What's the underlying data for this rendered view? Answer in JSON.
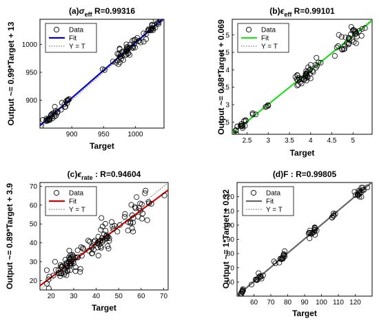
{
  "chart_data": [
    {
      "type": "scatter",
      "title_prefix": "(a)",
      "title_sym": "σ",
      "title_sub": "eff",
      "title_r": "  R=0.99316",
      "xlabel": "Target",
      "ylabel": "Output ~= 0.99*Target + 13",
      "xlim": [
        850,
        1045
      ],
      "ylim": [
        850,
        1045
      ],
      "xticks": [
        900,
        950,
        1000
      ],
      "yticks": [
        900,
        950,
        1000
      ],
      "fit": {
        "slope": 0.99,
        "intercept": 13
      },
      "fit_color": "#0000cc",
      "legend": {
        "data": "Data",
        "fit": "Fit",
        "ident": "Y = T"
      },
      "groups": [
        {
          "xc": 868,
          "xs": 12,
          "n": 26,
          "noise": 4.5,
          "seed": 11
        },
        {
          "xc": 890,
          "xs": 10,
          "n": 10,
          "noise": 4,
          "seed": 12
        },
        {
          "xc": 981,
          "xs": 22,
          "n": 45,
          "noise": 6,
          "seed": 13
        },
        {
          "xc": 1025,
          "xs": 12,
          "n": 24,
          "noise": 5,
          "seed": 14
        }
      ]
    },
    {
      "type": "scatter",
      "title_prefix": "(b)",
      "title_sym": "ϵ",
      "title_sub": "eff",
      "title_r": "  R=0.99101",
      "xlabel": "Target",
      "ylabel": "Output ~= 0.98*Target + 0.069",
      "xlim": [
        2.15,
        5.45
      ],
      "ylim": [
        2.15,
        5.45
      ],
      "xticks": [
        2.5,
        3,
        3.5,
        4,
        4.5,
        5
      ],
      "yticks": [
        2.5,
        3,
        3.5,
        4,
        4.5,
        5
      ],
      "fit": {
        "slope": 0.98,
        "intercept": 0.069
      },
      "fit_color": "#22dd22",
      "legend": {
        "data": "Data",
        "fit": "Fit",
        "ident": "Y = T"
      },
      "groups": [
        {
          "xc": 2.4,
          "xs": 0.2,
          "n": 20,
          "noise": 0.07,
          "seed": 21
        },
        {
          "xc": 2.9,
          "xs": 0.08,
          "n": 4,
          "noise": 0.05,
          "seed": 22
        },
        {
          "xc": 3.95,
          "xs": 0.3,
          "n": 40,
          "noise": 0.12,
          "seed": 23
        },
        {
          "xc": 4.95,
          "xs": 0.35,
          "n": 36,
          "noise": 0.13,
          "seed": 24
        }
      ]
    },
    {
      "type": "scatter",
      "title_prefix": "(c)",
      "title_sym": "ϵ",
      "title_sub": "rate",
      "title_r": "  : R=0.94604",
      "xlabel": "Target",
      "ylabel": "Output ~= 0.89*Target + 3.9",
      "xlim": [
        15,
        72
      ],
      "ylim": [
        15,
        72
      ],
      "xticks": [
        20,
        30,
        40,
        50,
        60,
        70
      ],
      "yticks": [
        20,
        30,
        40,
        50,
        60,
        70
      ],
      "fit": {
        "slope": 0.89,
        "intercept": 3.9
      },
      "fit_color": "#dd0000",
      "legend": {
        "data": "Data",
        "fit": "Fit",
        "ident": "Y = T"
      },
      "groups": [
        {
          "xc": 27,
          "xs": 7,
          "n": 60,
          "noise": 2.8,
          "seed": 31
        },
        {
          "xc": 42,
          "xs": 7,
          "n": 50,
          "noise": 3.5,
          "seed": 32
        },
        {
          "xc": 58,
          "xs": 8,
          "n": 30,
          "noise": 5,
          "seed": 33
        }
      ]
    },
    {
      "type": "scatter",
      "title_prefix": "(d)F",
      "title_sym": "",
      "title_sub": "",
      "title_r": "   : R=0.99805",
      "xlabel": "Target",
      "ylabel": "Output ~= 1*Target + 0.32",
      "xlim": [
        50,
        130
      ],
      "ylim": [
        50,
        130
      ],
      "xticks": [
        60,
        70,
        80,
        90,
        100,
        110,
        120
      ],
      "yticks": [
        60,
        70,
        80,
        90,
        100,
        110,
        120
      ],
      "fit": {
        "slope": 1.0,
        "intercept": 0.32
      },
      "fit_color": "#666666",
      "legend": {
        "data": "Data",
        "fit": "Fit",
        "ident": "Y = T"
      },
      "groups": [
        {
          "xc": 53,
          "xs": 1,
          "n": 8,
          "noise": 0.8,
          "seed": 41
        },
        {
          "xc": 63,
          "xs": 3,
          "n": 12,
          "noise": 1.2,
          "seed": 42
        },
        {
          "xc": 77,
          "xs": 4,
          "n": 14,
          "noise": 1.4,
          "seed": 43
        },
        {
          "xc": 95,
          "xs": 3,
          "n": 16,
          "noise": 1.5,
          "seed": 44
        },
        {
          "xc": 107,
          "xs": 1.5,
          "n": 6,
          "noise": 1,
          "seed": 45
        },
        {
          "xc": 123,
          "xs": 3,
          "n": 18,
          "noise": 1.2,
          "seed": 46
        }
      ]
    }
  ]
}
